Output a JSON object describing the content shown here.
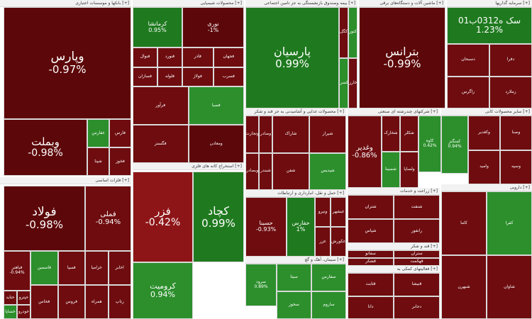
{
  "colors": {
    "strong_negative": "#5c0709",
    "negative": "#6e0c0f",
    "mild_negative": "#8e1517",
    "strong_positive": "#1f7a1f",
    "positive": "#2c8f2c",
    "neutral_dark": "#4a0508"
  },
  "chart_data": {
    "type": "treemap",
    "sectors": [
      {
        "label": "بانکها و موسسات اعتباری [+]"
      },
      {
        "label": "محصولات شیمیایی [+]"
      },
      {
        "label": "بیمه وصندوق بازنشستگی به جز تامین اجتماعی [+]"
      },
      {
        "label": "ماشین آلات و دستگاه‌های برقی [+]"
      },
      {
        "label": "سرمایه گذاریها [+]"
      },
      {
        "label": "فلزات اساسی [+]"
      },
      {
        "label": "استخراج کانه های فلزی [+]"
      },
      {
        "label": "محصولات غذایی و آشامیدنی به جز قند و شکر [+]"
      },
      {
        "label": "شرکتهای چندرشته ای صنعتی [+]"
      },
      {
        "label": "سایر محصولات کانی [+]"
      },
      {
        "label": "فرآورده های نفتی [+]"
      },
      {
        "label": "حمل و نقل، انبارداری و ارتباطات [+]"
      },
      {
        "label": "زراعت و خدمات [+]"
      },
      {
        "label": "دارویی [+]"
      },
      {
        "label": "سیمان، آهک و گچ [+]"
      },
      {
        "label": "قند و شکر [+]"
      },
      {
        "label": "فعالیتهای کمکی به [+]"
      }
    ],
    "tiles": [
      {
        "name": "وپارس",
        "change": "-0.97%",
        "pct": -0.97
      },
      {
        "name": "وبملت",
        "change": "-0.98%",
        "pct": -0.98
      },
      {
        "name": "فولاد",
        "change": "-0.98%",
        "pct": -0.98
      },
      {
        "name": "فملی",
        "change": "-0.94%",
        "pct": -0.94
      },
      {
        "name": "فزر",
        "change": "-0.42%",
        "pct": -0.42
      },
      {
        "name": "کچاد",
        "change": "0.99%",
        "pct": 0.99
      },
      {
        "name": "کرومیت",
        "change": "0.94%",
        "pct": 0.94
      },
      {
        "name": "پارسیان",
        "change": "0.99%",
        "pct": 0.99
      },
      {
        "name": "بترانس",
        "change": "-0.99%",
        "pct": -0.99
      },
      {
        "name": "سک ه0312ب01",
        "change": "1.23%",
        "pct": 1.23
      },
      {
        "name": "کرمانشا",
        "change": "0.95%",
        "pct": 0.95
      },
      {
        "name": "نوری",
        "change": "-1%",
        "pct": -1
      },
      {
        "name": "وغدیر",
        "change": "-0.86%",
        "pct": -0.86
      },
      {
        "name": "حسینا",
        "change": "-0.93%",
        "pct": -0.93
      },
      {
        "name": "حفارس",
        "change": "1%",
        "pct": 1
      },
      {
        "name": "فباهنر",
        "change": "-0.94%",
        "pct": -0.94
      },
      {
        "name": "کاوه",
        "change": "0.42%",
        "pct": 0.42
      },
      {
        "name": "کمنگنز",
        "change": "0.94%",
        "pct": 0.94
      },
      {
        "name": "سرود",
        "change": "0.89%",
        "pct": 0.89
      },
      {
        "name": "غفارس",
        "change": "",
        "pct": 0.9
      },
      {
        "name": "فارس",
        "change": "",
        "pct": -0.9
      },
      {
        "name": "شپنا",
        "change": "",
        "pct": -0.9
      },
      {
        "name": "فخوز",
        "change": "",
        "pct": -0.9
      },
      {
        "name": "فاسمین",
        "change": "",
        "pct": 0.8
      },
      {
        "name": "فسپا",
        "change": "",
        "pct": -0.8
      },
      {
        "name": "فخاس",
        "change": "",
        "pct": -0.8
      },
      {
        "name": "فروس",
        "change": "",
        "pct": -0.9
      },
      {
        "name": "فاذر",
        "change": "",
        "pct": -0.9
      },
      {
        "name": "فجهان",
        "change": "",
        "pct": -0.9
      },
      {
        "name": "فولاژ",
        "change": "",
        "pct": -0.9
      },
      {
        "name": "فسرب",
        "change": "",
        "pct": -0.9
      },
      {
        "name": "فنوال",
        "change": "",
        "pct": -0.9
      },
      {
        "name": "فنورد",
        "change": "",
        "pct": -0.9
      },
      {
        "name": "فسازان",
        "change": "",
        "pct": -0.9
      },
      {
        "name": "فلوله",
        "change": "",
        "pct": -0.9
      },
      {
        "name": "فرآور",
        "change": "",
        "pct": -0.9
      },
      {
        "name": "فصبا",
        "change": "",
        "pct": 0.9
      },
      {
        "name": "فگستر",
        "change": "",
        "pct": -0.9
      },
      {
        "name": "ومعادن",
        "change": "",
        "pct": -0.98
      },
      {
        "name": "کگل",
        "change": "",
        "pct": -0.9
      },
      {
        "name": "کنور",
        "change": "",
        "pct": 0.9
      },
      {
        "name": "کسرا",
        "change": "",
        "pct": 0.9
      },
      {
        "name": "وخارزم",
        "change": "",
        "pct": -0.9
      },
      {
        "name": "وتجارت",
        "change": "",
        "pct": -0.9
      },
      {
        "name": "وصادر",
        "change": "",
        "pct": -0.9
      },
      {
        "name": "وبصادر",
        "change": "",
        "pct": -0.9
      },
      {
        "name": "شبندر",
        "change": "",
        "pct": -0.9
      },
      {
        "name": "شاراک",
        "change": "",
        "pct": -0.9
      },
      {
        "name": "شیراز",
        "change": "",
        "pct": -0.9
      },
      {
        "name": "شفن",
        "change": "",
        "pct": -0.9
      },
      {
        "name": "شپدیس",
        "change": "",
        "pct": 0.9
      },
      {
        "name": "شخارک",
        "change": "",
        "pct": -0.9
      },
      {
        "name": "شکلر",
        "change": "",
        "pct": -0.9
      },
      {
        "name": "شسینا",
        "change": "",
        "pct": 0.9
      },
      {
        "name": "ولساپا",
        "change": "",
        "pct": -0.9
      },
      {
        "name": "وکغدیر",
        "change": "",
        "pct": -0.9
      },
      {
        "name": "وصنا",
        "change": "",
        "pct": -0.9
      },
      {
        "name": "وامید",
        "change": "",
        "pct": -0.9
      },
      {
        "name": "وسپه",
        "change": "",
        "pct": -0.9
      },
      {
        "name": "ونیرو",
        "change": "",
        "pct": -0.9
      },
      {
        "name": "غبشهر",
        "change": "",
        "pct": -0.9
      },
      {
        "name": "غزر",
        "change": "",
        "pct": -0.9
      },
      {
        "name": "غکورش",
        "change": "",
        "pct": -0.9
      },
      {
        "name": "کاما",
        "change": "",
        "pct": -0.9
      },
      {
        "name": "کفرا",
        "change": "",
        "pct": 0.9
      },
      {
        "name": "شبهرن",
        "change": "",
        "pct": -0.9
      },
      {
        "name": "شاوان",
        "change": "",
        "pct": -0.9
      },
      {
        "name": "شتران",
        "change": "",
        "pct": -0.9
      },
      {
        "name": "شنفت",
        "change": "",
        "pct": -0.9
      },
      {
        "name": "شپاس",
        "change": "",
        "pct": -0.9
      },
      {
        "name": "رانفور",
        "change": "",
        "pct": -0.9
      },
      {
        "name": "سیتا",
        "change": "",
        "pct": 0.9
      },
      {
        "name": "سفارس",
        "change": "",
        "pct": 0.9
      },
      {
        "name": "سخوز",
        "change": "",
        "pct": 0.9
      },
      {
        "name": "ساروم",
        "change": "",
        "pct": 0.9
      },
      {
        "name": "سفانو",
        "change": "",
        "pct": -0.9
      },
      {
        "name": "ستران",
        "change": "",
        "pct": -0.9
      },
      {
        "name": "قشکر",
        "change": "",
        "pct": -0.9
      },
      {
        "name": "قهکمت",
        "change": "",
        "pct": -0.9
      },
      {
        "name": "قثابت",
        "change": "",
        "pct": -0.9
      },
      {
        "name": "قنیشا",
        "change": "",
        "pct": -0.9
      },
      {
        "name": "دانا",
        "change": "",
        "pct": -0.9
      },
      {
        "name": "دجابر",
        "change": "",
        "pct": -0.9
      },
      {
        "name": "دسبحان",
        "change": "",
        "pct": -0.9
      },
      {
        "name": "دفرا",
        "change": "",
        "pct": -0.9
      },
      {
        "name": "زاگرس",
        "change": "",
        "pct": -0.9
      },
      {
        "name": "زملارد",
        "change": "",
        "pct": -0.9
      },
      {
        "name": "حتاید",
        "change": "",
        "pct": -0.9
      },
      {
        "name": "حپترو",
        "change": "",
        "pct": -0.9
      },
      {
        "name": "خساپا",
        "change": "",
        "pct": 0.9
      },
      {
        "name": "خودرو",
        "change": "",
        "pct": -0.9
      },
      {
        "name": "خزامیا",
        "change": "",
        "pct": -0.9
      },
      {
        "name": "اخابر",
        "change": "",
        "pct": -0.9
      },
      {
        "name": "همراه",
        "change": "",
        "pct": -0.9
      },
      {
        "name": "رتاپ",
        "change": "",
        "pct": -0.9
      }
    ]
  }
}
